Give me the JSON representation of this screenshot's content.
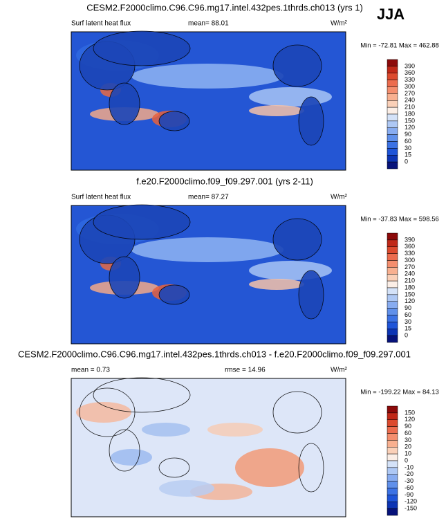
{
  "season": "JJA",
  "panels": [
    {
      "title": "CESM2.F2000climo.C96.C96.mg17.intel.432pes.1thrds.ch013 (yrs 1)",
      "left_label": "Surf latent heat flux",
      "mid_label": "mean=  88.01",
      "units": "W/m²",
      "minmax": "Min = -72.81 Max = 462.88",
      "colorbar": {
        "labels": [
          "390",
          "360",
          "330",
          "300",
          "270",
          "240",
          "210",
          "180",
          "150",
          "120",
          "90",
          "60",
          "30",
          "15",
          "0"
        ],
        "colors": [
          "#8c0a0a",
          "#c02818",
          "#dc4a2e",
          "#ec6c4e",
          "#f48e6e",
          "#f8b090",
          "#fad0b8",
          "#fbeee6",
          "#d4e2f8",
          "#aec8f4",
          "#88acf0",
          "#6090ea",
          "#3c72e4",
          "#1e54d8",
          "#0c34b4",
          "#06127a"
        ]
      }
    },
    {
      "title": "f.e20.F2000climo.f09_f09.297.001 (yrs 2-11)",
      "left_label": "Surf latent heat flux",
      "mid_label": "mean=  87.27",
      "units": "W/m²",
      "minmax": "Min = -37.83 Max = 598.56",
      "colorbar": {
        "labels": [
          "390",
          "360",
          "330",
          "300",
          "270",
          "240",
          "210",
          "180",
          "150",
          "120",
          "90",
          "60",
          "30",
          "15",
          "0"
        ],
        "colors": [
          "#8c0a0a",
          "#c02818",
          "#dc4a2e",
          "#ec6c4e",
          "#f48e6e",
          "#f8b090",
          "#fad0b8",
          "#fbeee6",
          "#d4e2f8",
          "#aec8f4",
          "#88acf0",
          "#6090ea",
          "#3c72e4",
          "#1e54d8",
          "#0c34b4",
          "#06127a"
        ]
      }
    },
    {
      "title": "CESM2.F2000climo.C96.C96.mg17.intel.432pes.1thrds.ch013 - f.e20.F2000climo.f09_f09.297.001",
      "left_label": "mean =  0.73",
      "mid_label": "rmse =  14.96",
      "units": "W/m²",
      "minmax": "Min = -199.22 Max = 84.13",
      "colorbar": {
        "labels": [
          "150",
          "120",
          "90",
          "60",
          "30",
          "20",
          "10",
          "0",
          "-10",
          "-20",
          "-30",
          "-60",
          "-90",
          "-120",
          "-150"
        ],
        "colors": [
          "#8c0a0a",
          "#c02818",
          "#dc4a2e",
          "#ec6c4e",
          "#f48e6e",
          "#f8b090",
          "#fad0b8",
          "#fbeee6",
          "#d4e2f8",
          "#aec8f4",
          "#88acf0",
          "#6090ea",
          "#3c72e4",
          "#1e54d8",
          "#0c34b4",
          "#06127a"
        ]
      }
    }
  ]
}
